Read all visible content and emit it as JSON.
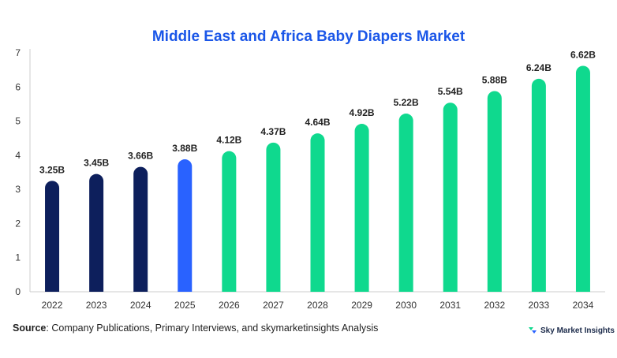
{
  "source_label": "Source",
  "source_text": ": Company Publications, Primary Interviews, and skymarketinsights Analysis",
  "brand_name": "Sky Market Insights",
  "brand_icon": "sky-market-insights-logo",
  "colors": {
    "historical": "#0d1f5c",
    "current": "#2962ff",
    "forecast": "#0fd98e",
    "title": "#1a56e8"
  },
  "chart_data": {
    "type": "bar",
    "title": "Middle East and Africa Baby Diapers Market",
    "xlabel": "",
    "ylabel": "",
    "ylim": [
      0,
      7
    ],
    "yticks": [
      "0",
      "1",
      "2",
      "3",
      "4",
      "5",
      "6",
      "7"
    ],
    "grid": false,
    "categories": [
      "2022",
      "2023",
      "2024",
      "2025",
      "2026",
      "2027",
      "2028",
      "2029",
      "2030",
      "2031",
      "2032",
      "2033",
      "2034"
    ],
    "values": [
      3.25,
      3.45,
      3.66,
      3.88,
      4.12,
      4.37,
      4.64,
      4.92,
      5.22,
      5.54,
      5.88,
      6.24,
      6.62
    ],
    "labels": [
      "3.25B",
      "3.45B",
      "3.66B",
      "3.88B",
      "4.12B",
      "4.37B",
      "4.64B",
      "4.92B",
      "5.22B",
      "5.54B",
      "5.88B",
      "6.24B",
      "6.62B"
    ],
    "bar_colors": [
      "#0d1f5c",
      "#0d1f5c",
      "#0d1f5c",
      "#2962ff",
      "#0fd98e",
      "#0fd98e",
      "#0fd98e",
      "#0fd98e",
      "#0fd98e",
      "#0fd98e",
      "#0fd98e",
      "#0fd98e",
      "#0fd98e"
    ]
  }
}
